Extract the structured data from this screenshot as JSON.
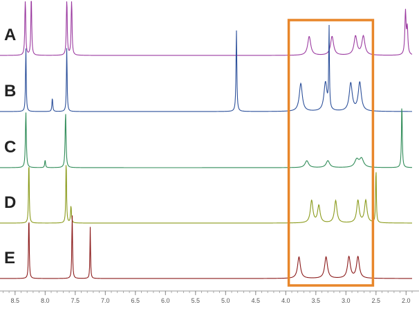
{
  "chart_data": {
    "type": "line",
    "title": "",
    "xlabel": "",
    "ylabel": "",
    "xlim": [
      8.75,
      1.9
    ],
    "x_reversed": true,
    "x_ticks": [
      "8.5",
      "8.0",
      "7.5",
      "7.0",
      "6.5",
      "6.0",
      "5.5",
      "5.0",
      "4.5",
      "4.0",
      "3.5",
      "3.0",
      "2.5",
      "2.0"
    ],
    "grid": false,
    "legend": "none",
    "highlight_region": {
      "x_from": 3.95,
      "x_to": 2.55,
      "color": "#e8862a"
    },
    "series": [
      {
        "label": "A",
        "color": "#9b3aa0",
        "peaks": [
          {
            "x": 8.33,
            "height": 1.5,
            "width": 0.008
          },
          {
            "x": 8.23,
            "height": 1.5,
            "width": 0.008
          },
          {
            "x": 7.64,
            "height": 1.5,
            "width": 0.008
          },
          {
            "x": 7.56,
            "height": 1.5,
            "width": 0.008
          },
          {
            "x": 3.61,
            "height": 0.44,
            "width": 0.03
          },
          {
            "x": 3.23,
            "height": 0.44,
            "width": 0.03
          },
          {
            "x": 2.84,
            "height": 0.44,
            "width": 0.03
          },
          {
            "x": 2.71,
            "height": 0.44,
            "width": 0.03
          },
          {
            "x": 2.01,
            "height": 1.0,
            "width": 0.012
          },
          {
            "x": 1.98,
            "height": 0.6,
            "width": 0.012
          }
        ]
      },
      {
        "label": "B",
        "color": "#2b4f9a",
        "peaks": [
          {
            "x": 8.32,
            "height": 1.5,
            "width": 0.007
          },
          {
            "x": 7.88,
            "height": 0.32,
            "width": 0.008
          },
          {
            "x": 7.64,
            "height": 1.5,
            "width": 0.007
          },
          {
            "x": 4.82,
            "height": 1.9,
            "width": 0.008
          },
          {
            "x": 3.75,
            "height": 0.65,
            "width": 0.03
          },
          {
            "x": 3.34,
            "height": 0.67,
            "width": 0.03
          },
          {
            "x": 3.28,
            "height": 1.9,
            "width": 0.007
          },
          {
            "x": 2.92,
            "height": 0.65,
            "width": 0.03
          },
          {
            "x": 2.77,
            "height": 0.67,
            "width": 0.03
          }
        ]
      },
      {
        "label": "C",
        "color": "#2e8b57",
        "peaks": [
          {
            "x": 8.32,
            "height": 1.3,
            "width": 0.009
          },
          {
            "x": 8.0,
            "height": 0.18,
            "width": 0.008
          },
          {
            "x": 7.66,
            "height": 1.3,
            "width": 0.009
          },
          {
            "x": 3.65,
            "height": 0.16,
            "width": 0.035
          },
          {
            "x": 3.3,
            "height": 0.16,
            "width": 0.035
          },
          {
            "x": 2.82,
            "height": 0.18,
            "width": 0.04
          },
          {
            "x": 2.74,
            "height": 0.2,
            "width": 0.04
          },
          {
            "x": 2.07,
            "height": 1.5,
            "width": 0.008
          }
        ]
      },
      {
        "label": "D",
        "color": "#8a9a1a",
        "peaks": [
          {
            "x": 8.27,
            "height": 1.5,
            "width": 0.007
          },
          {
            "x": 7.65,
            "height": 1.5,
            "width": 0.007
          },
          {
            "x": 7.57,
            "height": 0.4,
            "width": 0.009
          },
          {
            "x": 3.57,
            "height": 0.52,
            "width": 0.025
          },
          {
            "x": 3.45,
            "height": 0.4,
            "width": 0.025
          },
          {
            "x": 3.17,
            "height": 0.52,
            "width": 0.025
          },
          {
            "x": 2.8,
            "height": 0.52,
            "width": 0.025
          },
          {
            "x": 2.67,
            "height": 0.52,
            "width": 0.025
          },
          {
            "x": 2.5,
            "height": 1.3,
            "width": 0.007
          }
        ]
      },
      {
        "label": "E",
        "color": "#8b1a1a",
        "peaks": [
          {
            "x": 8.27,
            "height": 1.5,
            "width": 0.007
          },
          {
            "x": 7.55,
            "height": 1.5,
            "width": 0.007
          },
          {
            "x": 7.25,
            "height": 1.2,
            "width": 0.006
          },
          {
            "x": 3.78,
            "height": 0.5,
            "width": 0.028
          },
          {
            "x": 3.33,
            "height": 0.5,
            "width": 0.028
          },
          {
            "x": 2.95,
            "height": 0.5,
            "width": 0.028
          },
          {
            "x": 2.8,
            "height": 0.5,
            "width": 0.028
          }
        ]
      }
    ]
  }
}
